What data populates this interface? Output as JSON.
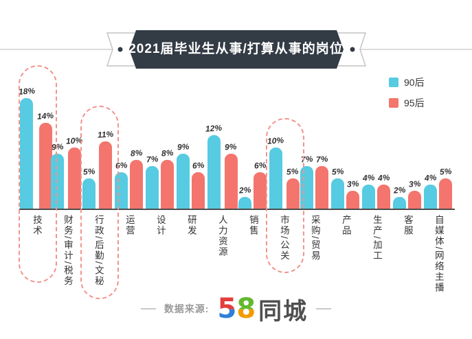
{
  "title": "2021届毕业生从事/打算从事的岗位",
  "legend": [
    {
      "label": "90后",
      "color": "#56cbe1"
    },
    {
      "label": "95后",
      "color": "#f3756d"
    }
  ],
  "chart_data": {
    "type": "bar",
    "title": "2021届毕业生从事/打算从事的岗位",
    "unit": "%",
    "categories": [
      "技术",
      "财务/审计/税务",
      "行政/后勤/文秘",
      "运营",
      "设计",
      "研发",
      "人力资源",
      "销售",
      "市场/公关",
      "采购/贸易",
      "产品",
      "生产/加工",
      "客服",
      "自媒体/网络主播"
    ],
    "series": [
      {
        "name": "90后",
        "color": "#56cbe1",
        "values": [
          18,
          9,
          5,
          6,
          7,
          9,
          12,
          2,
          10,
          7,
          5,
          4,
          2,
          4
        ]
      },
      {
        "name": "95后",
        "color": "#f3756d",
        "values": [
          14,
          10,
          11,
          8,
          8,
          6,
          9,
          6,
          5,
          7,
          3,
          4,
          3,
          5
        ]
      }
    ],
    "highlighted_categories": [
      "技术",
      "行政/后勤/文秘",
      "市场/公关"
    ],
    "ylim": [
      0,
      19
    ],
    "grid": false,
    "legend_position": "top-right",
    "value_labels": true
  },
  "footer": {
    "source_label": "数据来源:",
    "logo_digit_5": "5",
    "logo_digit_8": "8",
    "logo_text": "同城"
  }
}
